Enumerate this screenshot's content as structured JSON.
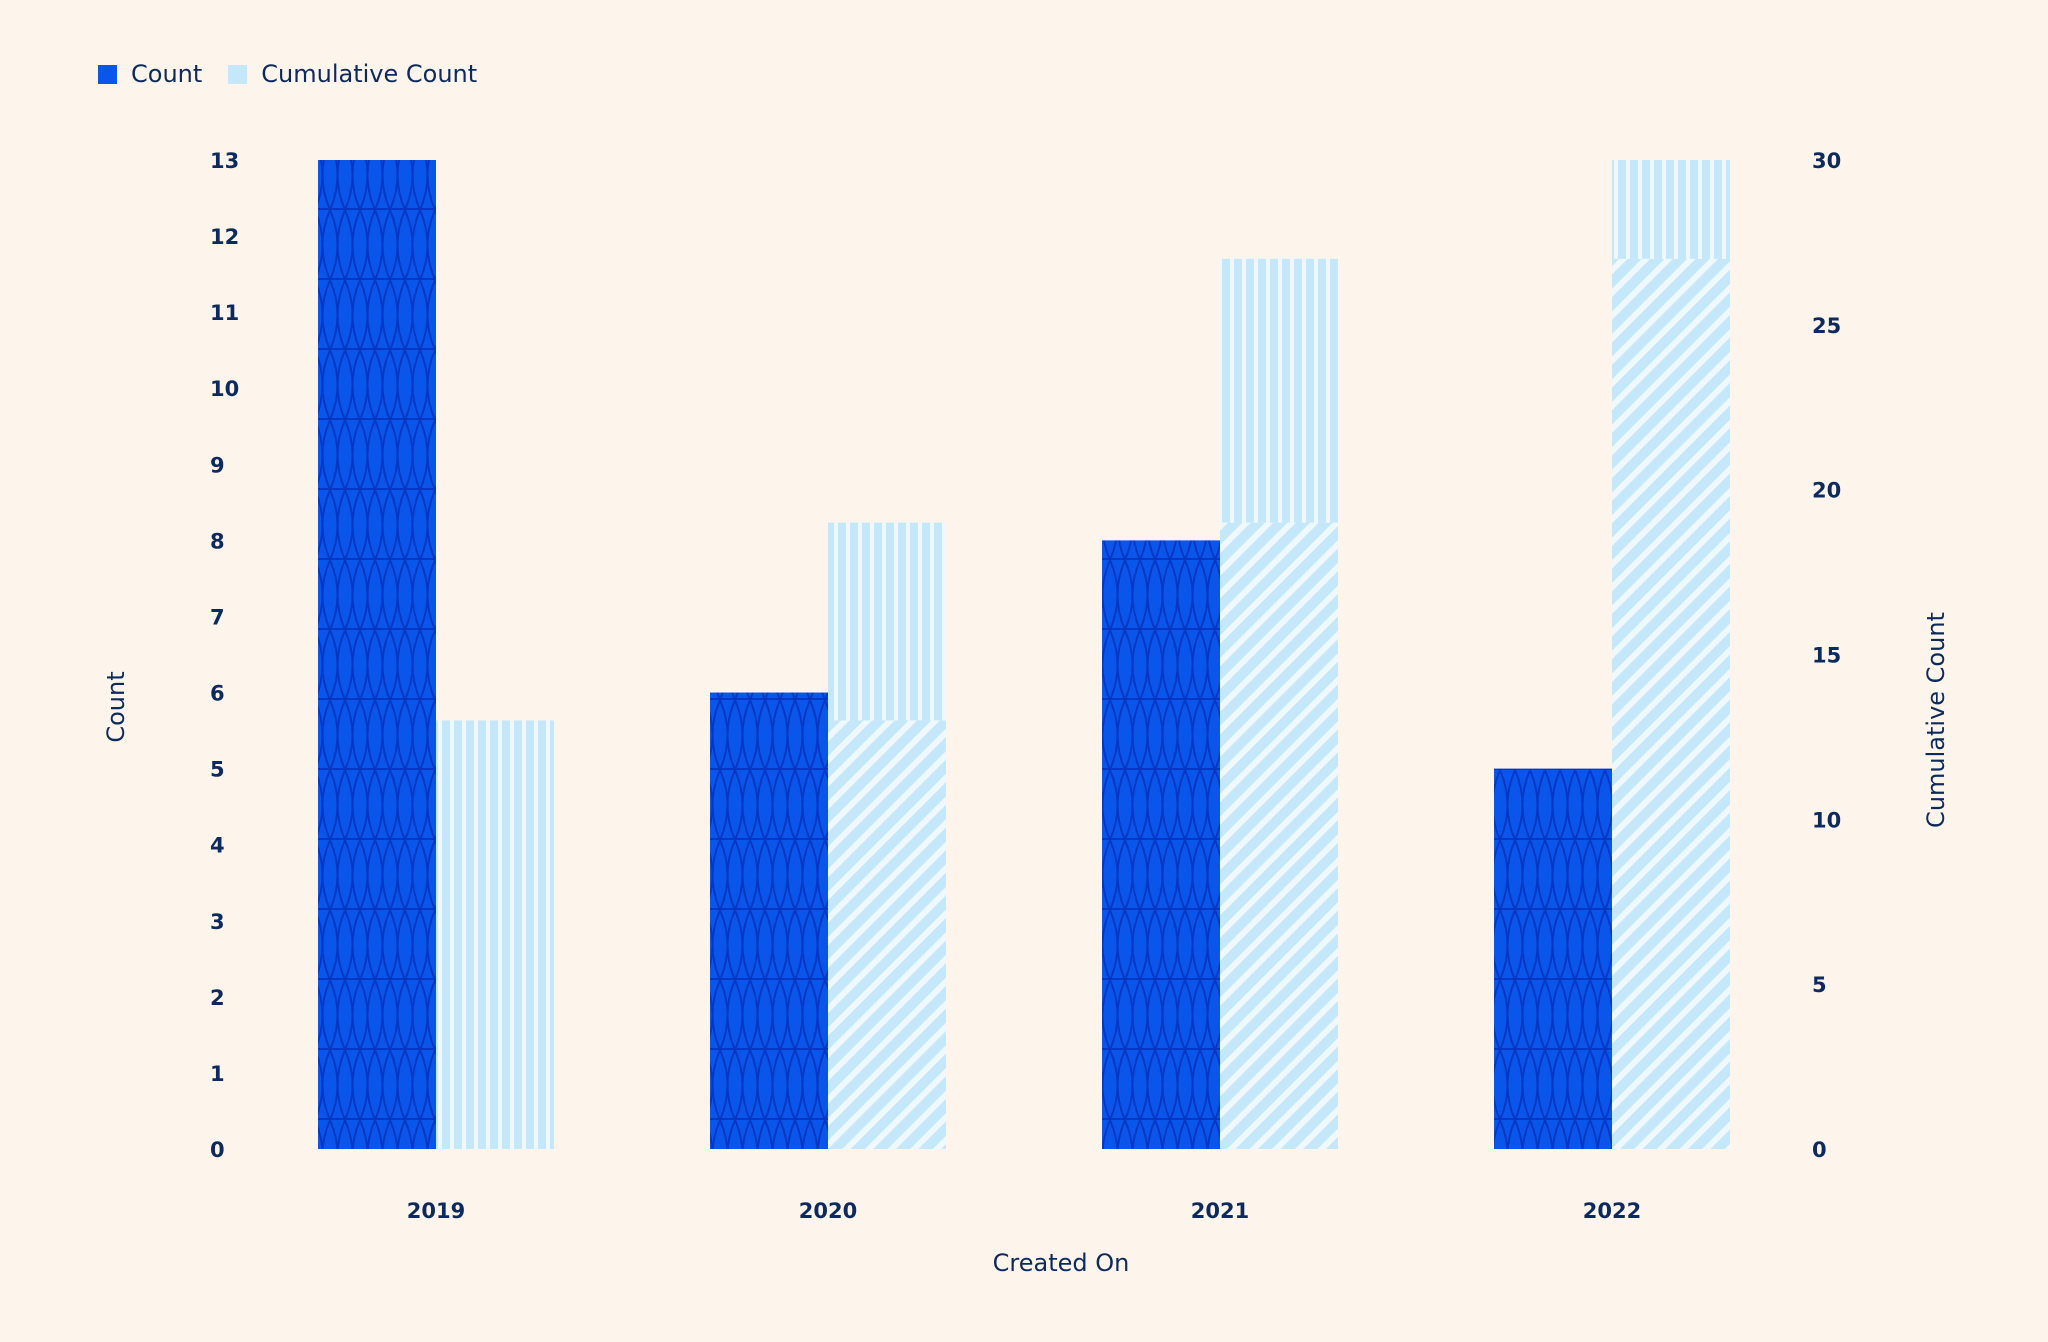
{
  "colors": {
    "count": "#0a56ea",
    "count_pattern": "#0438c4",
    "cumulative": "#c4e7f9",
    "cumulative_stripe": "#eef8fd",
    "text": "#0d2a5e",
    "background": "#fdf4ec"
  },
  "chart_data": {
    "type": "bar",
    "categories": [
      "2019",
      "2020",
      "2021",
      "2022"
    ],
    "series": [
      {
        "name": "Count",
        "axis": "left",
        "values": [
          13,
          6,
          8,
          5
        ]
      },
      {
        "name": "Cumulative Count",
        "axis": "right",
        "values": [
          13,
          19,
          27,
          32
        ]
      }
    ],
    "xlabel": "Created On",
    "ylabel": "Count",
    "ylabel_right": "Cumulative Count",
    "ylim": [
      0,
      13
    ],
    "ylim_right": [
      0,
      30
    ],
    "yticks": [
      "0",
      "1",
      "2",
      "3",
      "4",
      "5",
      "6",
      "7",
      "8",
      "9",
      "10",
      "11",
      "12",
      "13"
    ],
    "yticks_right": [
      "0",
      "5",
      "10",
      "15",
      "20",
      "25",
      "30"
    ],
    "legend": "top-left",
    "grid": false
  }
}
